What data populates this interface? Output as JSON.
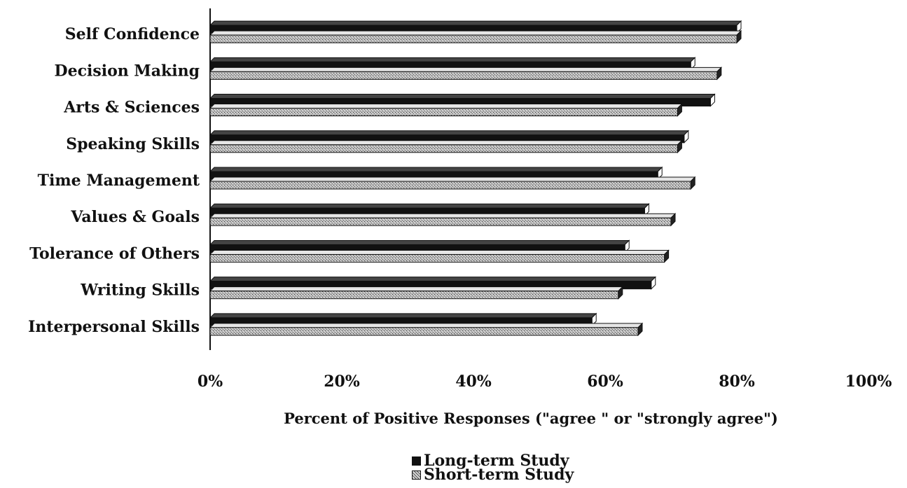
{
  "chart_data": {
    "type": "bar",
    "orientation": "horizontal",
    "categories": [
      "Self Confidence",
      "Decision Making",
      "Arts & Sciences",
      "Speaking Skills",
      "Time Management",
      "Values & Goals",
      "Tolerance of Others",
      "Writing Skills",
      "Interpersonal Skills"
    ],
    "series": [
      {
        "name": "Long-term Study",
        "values": [
          80,
          73,
          76,
          72,
          68,
          66,
          63,
          67,
          58
        ]
      },
      {
        "name": "Short-term Study",
        "values": [
          80,
          77,
          71,
          71,
          73,
          70,
          69,
          62,
          65
        ]
      }
    ],
    "xlabel": "Percent of Positive Responses (\"agree \" or \"strongly agree\")",
    "ylabel": "",
    "xlim": [
      0,
      100
    ],
    "ticks": [
      "0%",
      "20%",
      "40%",
      "60%",
      "80%",
      "100%"
    ],
    "colors": {
      "long": "#111111",
      "short": "#bdbdbd"
    },
    "legend_placement": "bottom-center"
  }
}
